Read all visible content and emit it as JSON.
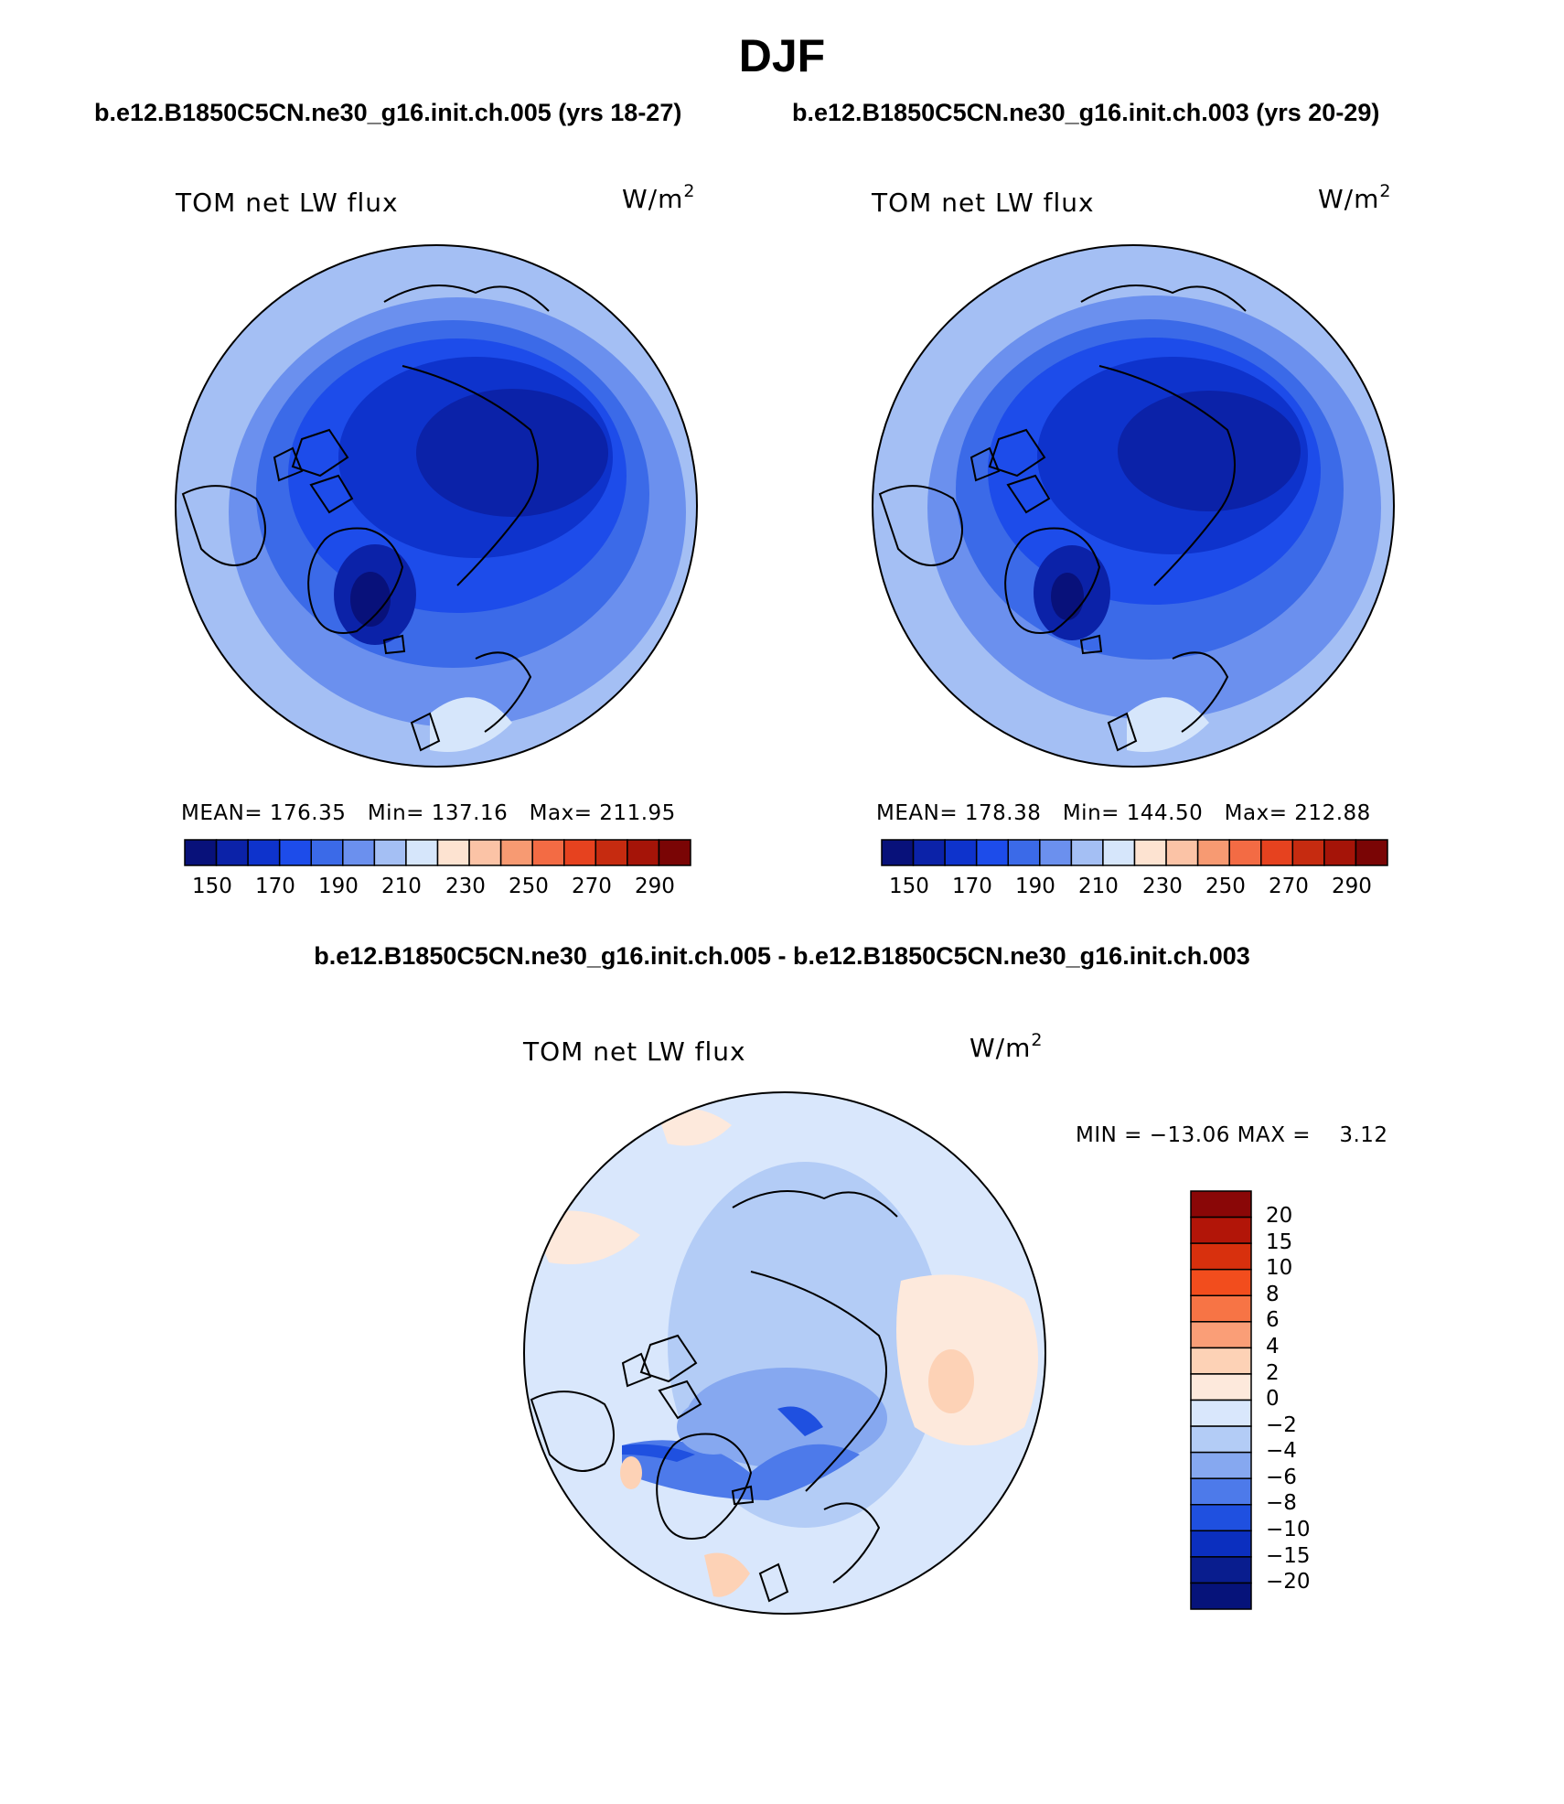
{
  "title": "DJF",
  "panels": [
    {
      "case_title": "b.e12.B1850C5CN.ne30_g16.init.ch.005 (yrs 18-27)",
      "variable": "TOM net LW flux",
      "units_base": "W/m",
      "units_exp": "2",
      "stats": {
        "mean_label": "MEAN=",
        "mean": "176.35",
        "min_label": "Min=",
        "min": "137.16",
        "max_label": "Max=",
        "max": "211.95"
      },
      "colorbar_ticks": [
        "150",
        "170",
        "190",
        "210",
        "230",
        "250",
        "270",
        "290"
      ]
    },
    {
      "case_title": "b.e12.B1850C5CN.ne30_g16.init.ch.003 (yrs 20-29)",
      "variable": "TOM net LW flux",
      "units_base": "W/m",
      "units_exp": "2",
      "stats": {
        "mean_label": "MEAN=",
        "mean": "178.38",
        "min_label": "Min=",
        "min": "144.50",
        "max_label": "Max=",
        "max": "212.88"
      },
      "colorbar_ticks": [
        "150",
        "170",
        "190",
        "210",
        "230",
        "250",
        "270",
        "290"
      ]
    }
  ],
  "difference": {
    "title": "b.e12.B1850C5CN.ne30_g16.init.ch.005 - b.e12.B1850C5CN.ne30_g16.init.ch.003",
    "variable": "TOM net LW flux",
    "units_base": "W/m",
    "units_exp": "2",
    "stats_text": "MIN = −13.06 MAX =    3.12",
    "colorbar_ticks": [
      "20",
      "15",
      "10",
      "8",
      "6",
      "4",
      "2",
      "0",
      "−2",
      "−4",
      "−6",
      "−8",
      "−10",
      "−15",
      "−20"
    ]
  },
  "colors": {
    "abs_scale": [
      "#08117a",
      "#0b22a8",
      "#0e33cc",
      "#1d4cea",
      "#3b6ae8",
      "#6b90ee",
      "#a4bff4",
      "#d6e6fb",
      "#fde3d1",
      "#fbc3a6",
      "#f79a72",
      "#f36b44",
      "#e6421f",
      "#c62b10",
      "#a51408",
      "#7a0505"
    ],
    "diff_scale": [
      "#8a0707",
      "#b21508",
      "#d8300d",
      "#f24d1d",
      "#f77445",
      "#fa9e77",
      "#fdd2b6",
      "#fde9dc",
      "#d9e7fc",
      "#b3ccf6",
      "#86a8f0",
      "#4d7aea",
      "#1f50e0",
      "#0b2fbf",
      "#091d8e",
      "#06137a"
    ],
    "ocean_light": "#a4bff4",
    "ocean_mid": "#6b90ee",
    "core_dark": "#0b22a8",
    "coast": "#000000"
  }
}
